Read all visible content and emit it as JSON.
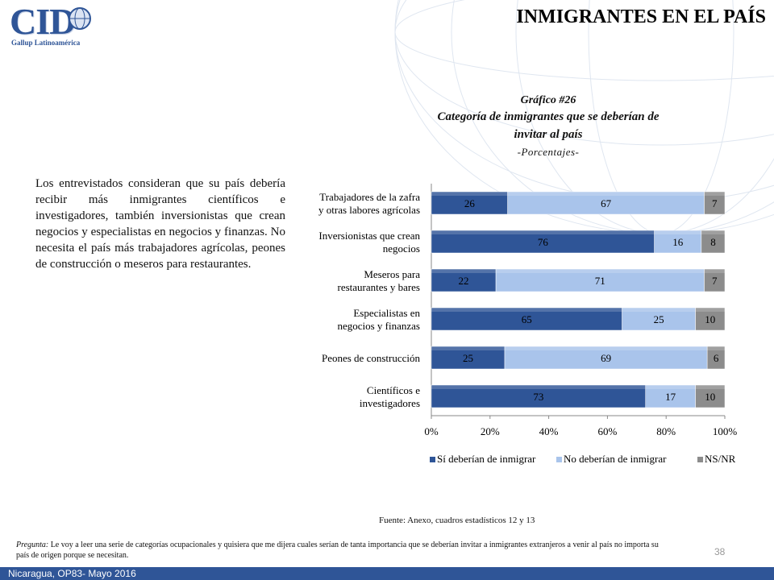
{
  "header": {
    "logo_text": "CID",
    "logo_subtitle": "Gallup Latinoamérica",
    "title": "INMIGRANTES EN EL PAÍS"
  },
  "chart_heading": {
    "number": "Gráfico #26",
    "title_line1": "Categoría de inmigrantes que se deberían de",
    "title_line2": "invitar al país",
    "subtitle": "-Porcentajes-"
  },
  "body_text": "Los entrevistados consideran que su país debería recibir más inmigrantes científicos e investigadores, también inversionistas que crean negocios y especialistas en negocios y finanzas.  No necesita el país más trabajadores agrícolas, peones de construcción o meseros para restaurantes.",
  "chart_data": {
    "type": "bar",
    "orientation": "horizontal",
    "stacked": true,
    "categories": [
      [
        "Trabajadores de la zafra",
        "y otras labores agrícolas"
      ],
      [
        "Inversionistas que crean",
        "negocios"
      ],
      [
        "Meseros para",
        "restaurantes y bares"
      ],
      [
        "Especialistas en",
        "negocios y finanzas"
      ],
      [
        "Peones de construcción"
      ],
      [
        "Científicos e",
        "investigadores"
      ]
    ],
    "series": [
      {
        "name": "Sí deberían de inmigrar",
        "values": [
          26,
          76,
          22,
          65,
          25,
          73
        ],
        "color": "#2f5597"
      },
      {
        "name": "No deberían de inmigrar",
        "values": [
          67,
          16,
          71,
          25,
          69,
          17
        ],
        "color": "#a9c4eb"
      },
      {
        "name": "NS/NR",
        "values": [
          7,
          8,
          7,
          10,
          6,
          10
        ],
        "color": "#8c8c8c"
      }
    ],
    "xticks": [
      "0%",
      "20%",
      "40%",
      "60%",
      "80%",
      "100%"
    ],
    "xlim": [
      0,
      100
    ],
    "legend_position": "bottom",
    "grid": false
  },
  "source_note": "Fuente: Anexo, cuadros estadísticos 12 y 13",
  "question": {
    "label": "Pregunta:",
    "text": " Le voy a leer una serie de categorías ocupacionales y quisiera que me dijera cuales serían de tanta importancia que se deberían invitar a inmigrantes extranjeros a venir al país no importa su país de origen porque se necesitan."
  },
  "page_number": "38",
  "footer": {
    "text": "Nicaragua, OP83- Mayo 2016",
    "color": "#2f5597"
  }
}
